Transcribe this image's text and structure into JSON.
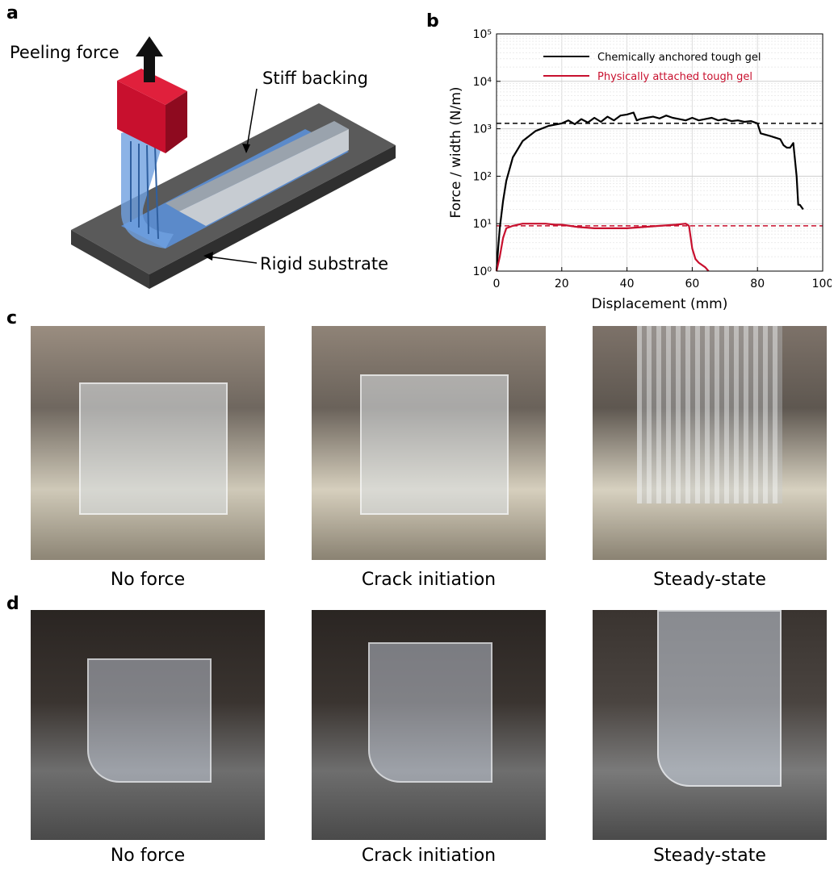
{
  "panels": {
    "a": {
      "letter": "a",
      "labels": {
        "peeling_force": "Peeling force",
        "stiff_backing": "Stiff backing",
        "rigid_substrate": "Rigid substrate"
      }
    },
    "b": {
      "letter": "b"
    },
    "c": {
      "letter": "c",
      "captions": [
        "No force",
        "Crack initiation",
        "Steady-state"
      ]
    },
    "d": {
      "letter": "d",
      "captions": [
        "No force",
        "Crack initiation",
        "Steady-state"
      ]
    }
  },
  "colors": {
    "gel_blue": "#5b8fd6",
    "clamp_red": "#c8102e",
    "substrate": "#4a4a4a",
    "series_black": "#000000",
    "series_red": "#c8102e"
  },
  "chart_data": {
    "type": "line",
    "xlabel": "Displacement (mm)",
    "ylabel": "Force / width (N/m)",
    "xlim": [
      0,
      100
    ],
    "ylim": [
      1,
      100000
    ],
    "yscale": "log",
    "xticks": [
      0,
      20,
      40,
      60,
      80,
      100
    ],
    "yticks": [
      "10⁰",
      "10¹",
      "10²",
      "10³",
      "10⁴",
      "10⁵"
    ],
    "grid": true,
    "legend": "top-left",
    "reference_lines": [
      {
        "y": 1300,
        "color": "#000000",
        "style": "dashed"
      },
      {
        "y": 9,
        "color": "#c8102e",
        "style": "dashed"
      }
    ],
    "series": [
      {
        "name": "Chemically anchored tough gel",
        "color": "#000000",
        "x": [
          0,
          0.5,
          1,
          2,
          3,
          5,
          8,
          12,
          16,
          20,
          22,
          24,
          26,
          28,
          30,
          32,
          34,
          36,
          38,
          40,
          42,
          43,
          44,
          46,
          48,
          50,
          52,
          54,
          56,
          58,
          60,
          62,
          64,
          66,
          68,
          70,
          72,
          74,
          76,
          78,
          80,
          81,
          84,
          87,
          88,
          89,
          90,
          91,
          92,
          92.5,
          93,
          94
        ],
        "y": [
          1,
          3,
          8,
          30,
          80,
          250,
          550,
          900,
          1150,
          1300,
          1500,
          1250,
          1600,
          1350,
          1700,
          1400,
          1800,
          1500,
          1900,
          2000,
          2200,
          1500,
          1600,
          1700,
          1800,
          1650,
          1900,
          1700,
          1600,
          1500,
          1700,
          1500,
          1600,
          1700,
          1500,
          1600,
          1450,
          1500,
          1400,
          1450,
          1300,
          800,
          700,
          600,
          450,
          400,
          400,
          500,
          100,
          25,
          25,
          20
        ]
      },
      {
        "name": "Physically attached tough gel",
        "color": "#c8102e",
        "x": [
          0,
          1,
          2,
          3,
          5,
          8,
          10,
          12,
          15,
          18,
          20,
          25,
          30,
          35,
          40,
          45,
          50,
          55,
          58,
          59,
          60,
          61,
          62,
          64,
          65
        ],
        "y": [
          1,
          2,
          5,
          8,
          9,
          10,
          10,
          10,
          10,
          9.5,
          9.5,
          8.5,
          8,
          8,
          8,
          8.5,
          9,
          9.5,
          10,
          9,
          3,
          1.8,
          1.5,
          1.2,
          1
        ]
      }
    ]
  }
}
